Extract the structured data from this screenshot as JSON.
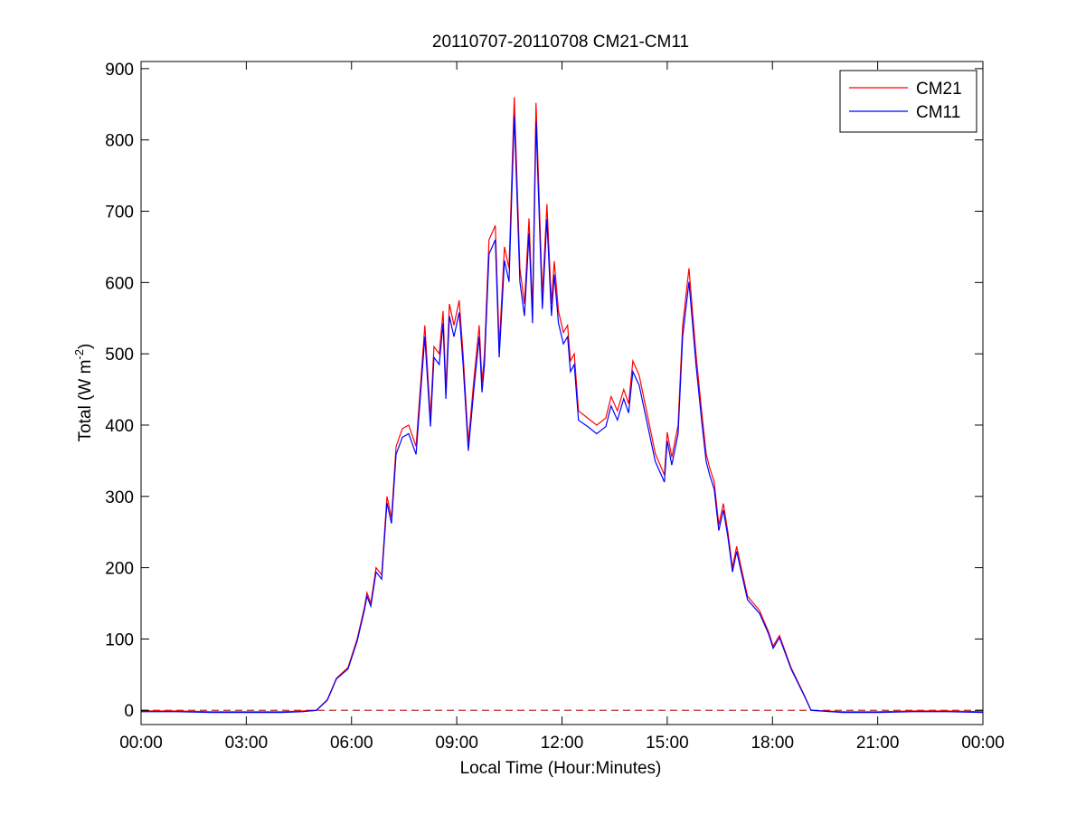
{
  "chart_data": {
    "type": "line",
    "title": "20110707-20110708 CM21-CM11",
    "xlabel": "Local Time (Hour:Minutes)",
    "ylabel": {
      "text": "Total (W m",
      "superscript": "-2",
      "suffix": ")"
    },
    "x": [
      0,
      1,
      2,
      3,
      4,
      4.6,
      5.0,
      5.31,
      5.57,
      5.9,
      6.16,
      6.37,
      6.44,
      6.55,
      6.7,
      6.86,
      7.01,
      7.14,
      7.27,
      7.45,
      7.63,
      7.84,
      8.09,
      8.25,
      8.35,
      8.5,
      8.61,
      8.69,
      8.79,
      8.92,
      9.07,
      9.18,
      9.33,
      9.48,
      9.64,
      9.72,
      9.79,
      9.92,
      10.1,
      10.21,
      10.36,
      10.49,
      10.64,
      10.8,
      10.93,
      11.06,
      11.16,
      11.26,
      11.44,
      11.57,
      11.7,
      11.78,
      11.9,
      12.04,
      12.16,
      12.24,
      12.35,
      12.47,
      12.73,
      12.99,
      13.25,
      13.4,
      13.58,
      13.76,
      13.9,
      14.02,
      14.2,
      14.41,
      14.66,
      14.92,
      15.0,
      15.13,
      15.31,
      15.44,
      15.62,
      15.82,
      15.98,
      16.11,
      16.21,
      16.34,
      16.47,
      16.6,
      16.73,
      16.86,
      16.98,
      17.11,
      17.29,
      17.63,
      17.89,
      18.02,
      18.2,
      18.53,
      18.92,
      19.1,
      20,
      21,
      22,
      23,
      24
    ],
    "series": [
      {
        "name": "CM21",
        "color": "#ff0000",
        "values": [
          -1,
          -1,
          -2,
          -2,
          -2,
          -1,
          0,
          15,
          45,
          60,
          100,
          145,
          165,
          150,
          200,
          190,
          300,
          270,
          370,
          395,
          400,
          370,
          540,
          410,
          510,
          500,
          560,
          450,
          570,
          540,
          575,
          500,
          375,
          460,
          540,
          460,
          500,
          660,
          680,
          510,
          650,
          620,
          860,
          620,
          570,
          690,
          560,
          852,
          580,
          710,
          570,
          630,
          560,
          530,
          540,
          490,
          500,
          420,
          410,
          400,
          410,
          440,
          420,
          450,
          430,
          490,
          470,
          420,
          360,
          330,
          390,
          355,
          400,
          540,
          620,
          500,
          420,
          360,
          340,
          320,
          260,
          290,
          250,
          200,
          230,
          200,
          160,
          140,
          110,
          90,
          105,
          60,
          20,
          0,
          -2,
          -2,
          -1,
          -1,
          -2
        ]
      },
      {
        "name": "CM11",
        "color": "#0000ff",
        "values": [
          -2,
          -2,
          -3,
          -3,
          -3,
          -2,
          0,
          14,
          44,
          58,
          97,
          141,
          160,
          146,
          194,
          184,
          291,
          262,
          359,
          383,
          388,
          359,
          524,
          398,
          495,
          485,
          543,
          437,
          553,
          524,
          558,
          485,
          364,
          446,
          524,
          446,
          485,
          640,
          660,
          495,
          631,
          601,
          834,
          601,
          553,
          669,
          543,
          826,
          563,
          689,
          553,
          611,
          543,
          514,
          524,
          475,
          485,
          407,
          398,
          388,
          398,
          427,
          407,
          437,
          417,
          475,
          456,
          407,
          349,
          320,
          378,
          344,
          388,
          524,
          601,
          485,
          407,
          349,
          330,
          310,
          252,
          281,
          243,
          194,
          223,
          194,
          155,
          136,
          107,
          87,
          102,
          58,
          19,
          0,
          -3,
          -3,
          -2,
          -2,
          -3
        ]
      }
    ],
    "xlim": [
      0,
      24
    ],
    "xticks": [
      {
        "value": 0,
        "label": "00:00"
      },
      {
        "value": 3,
        "label": "03:00"
      },
      {
        "value": 6,
        "label": "06:00"
      },
      {
        "value": 9,
        "label": "09:00"
      },
      {
        "value": 12,
        "label": "12:00"
      },
      {
        "value": 15,
        "label": "15:00"
      },
      {
        "value": 18,
        "label": "18:00"
      },
      {
        "value": 21,
        "label": "21:00"
      },
      {
        "value": 24,
        "label": "00:00"
      }
    ],
    "ylim": [
      -20,
      910
    ],
    "yticks": [
      0,
      100,
      200,
      300,
      400,
      500,
      600,
      700,
      800,
      900
    ],
    "reference_line": {
      "y": 0,
      "color": "#c0302a",
      "dashed": true
    },
    "legend": "northeast",
    "grid": false
  }
}
